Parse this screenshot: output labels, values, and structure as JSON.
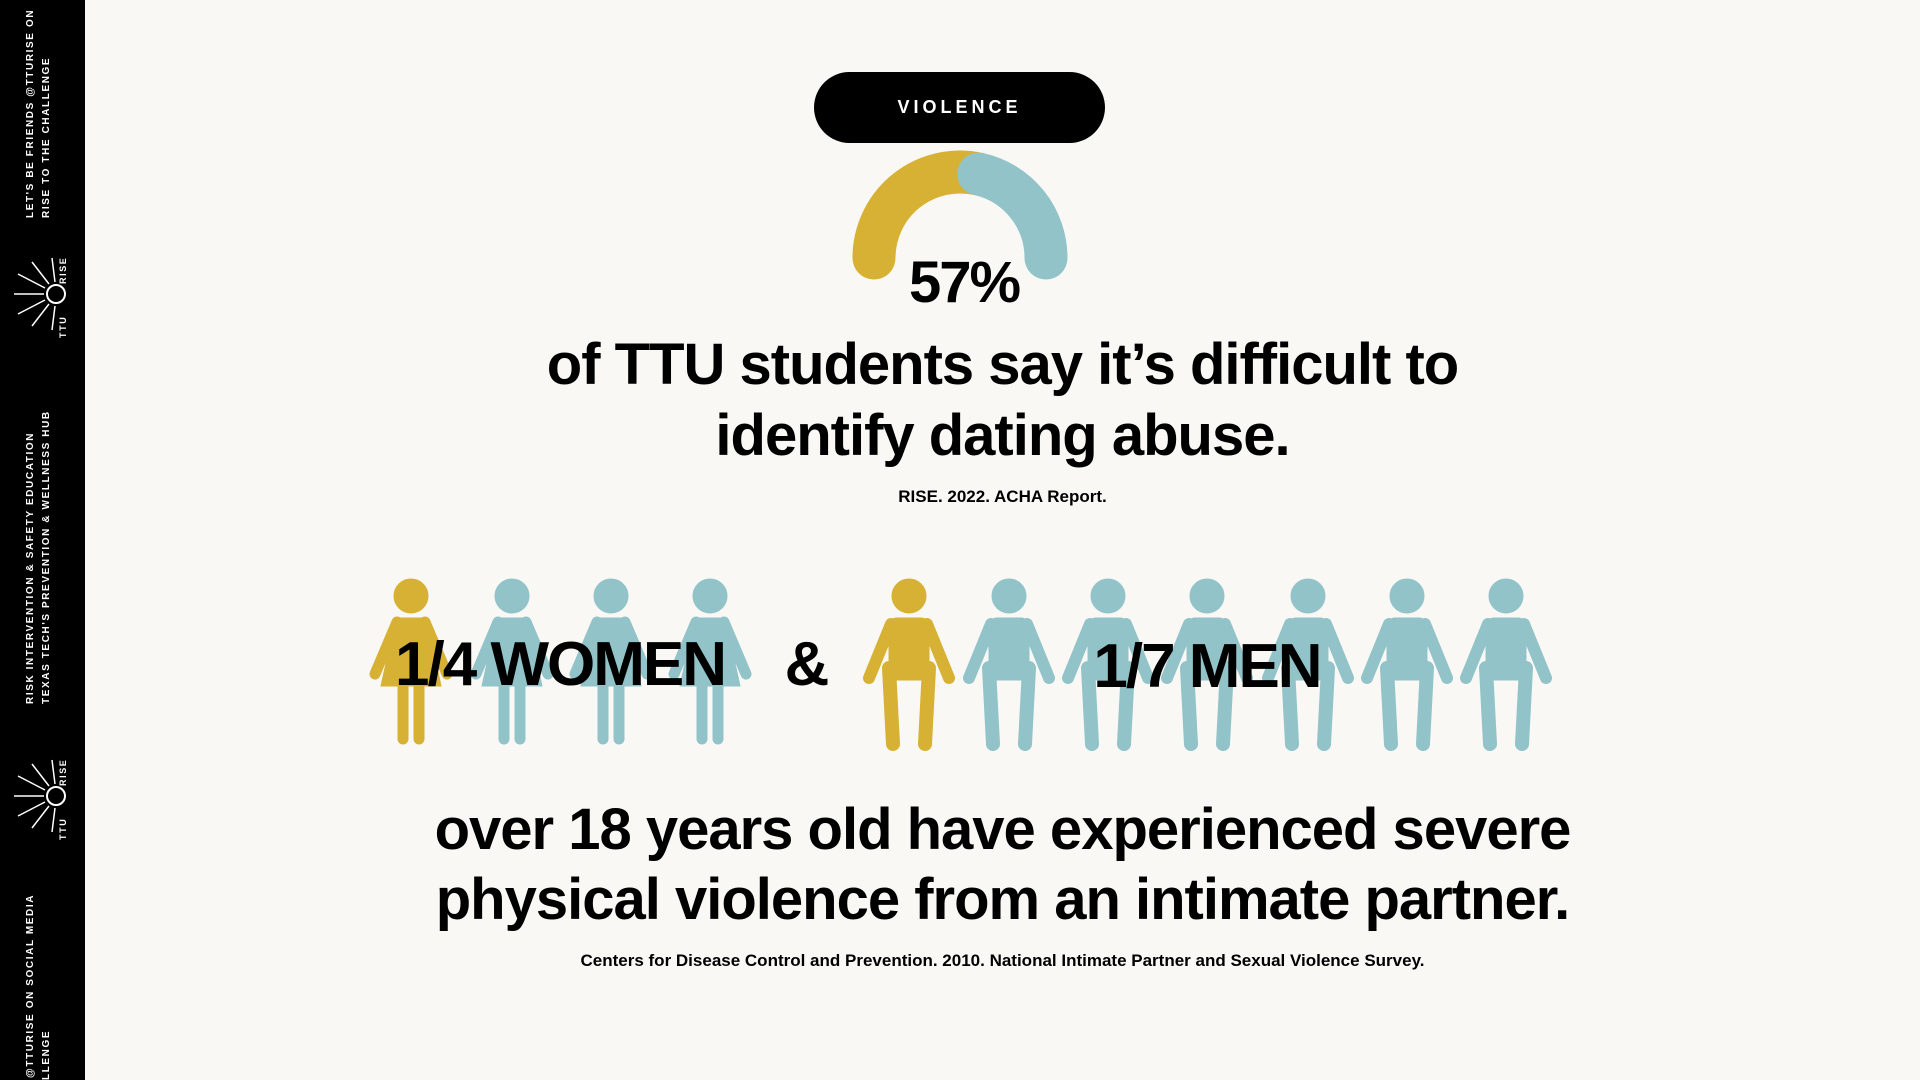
{
  "sidebar": {
    "top": [
      "LET'S BE FRIENDS @TTURISE ON",
      "RISE TO THE CHALLENGE"
    ],
    "middle": [
      "RISK INTERVENTION & SAFETY EDUCATION",
      "TEXAS TECH'S PREVENTION & WELLNESS HUB"
    ],
    "bottom": [
      "@TTURISE ON SOCIAL MEDIA",
      "LLENGE"
    ],
    "logo": [
      "TTU",
      "RISE"
    ]
  },
  "tag": "VIOLENCE",
  "stat": {
    "value": 57,
    "value_label": "57%",
    "colors": [
      "#d7b134",
      "#91c3c9"
    ],
    "text": [
      "of TTU students say it’s difficult to",
      "identify dating abuse."
    ],
    "source": "RISE. 2022. ACHA Report."
  },
  "groups": {
    "women": "1/4 WOMEN",
    "connector": "&",
    "men": "1/7 MEN"
  },
  "statement": [
    "over 18 years old have experienced severe",
    "physical violence from an intimate partner."
  ],
  "source2": "Centers for Disease Control and Prevention. 2010. National Intimate Partner and Sexual Violence Survey."
}
